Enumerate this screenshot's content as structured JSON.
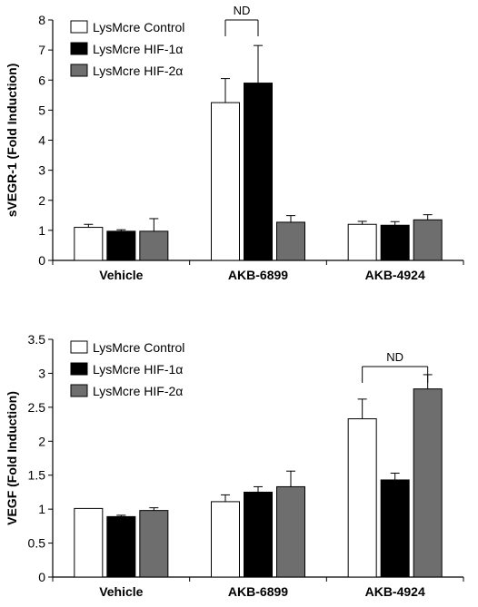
{
  "colors": {
    "control_fill": "#ffffff",
    "hif1a_fill": "#000000",
    "hif2a_fill": "#6e6e6e",
    "bar_stroke": "#000000",
    "axis": "#000000"
  },
  "chart_data": [
    {
      "type": "bar",
      "title": "",
      "xlabel": "",
      "ylabel": "sVEGR-1 (Fold Induction)",
      "ylim": [
        0,
        8
      ],
      "yticks": [
        "0",
        "1",
        "2",
        "3",
        "4",
        "5",
        "6",
        "7",
        "8"
      ],
      "grid": false,
      "legend_position": "top-left",
      "categories": [
        "Vehicle",
        "AKB-6899",
        "AKB-4924"
      ],
      "series": [
        {
          "name": "LysMcre Control",
          "color": "#ffffff",
          "values": [
            1.1,
            5.25,
            1.2
          ],
          "errors": [
            0.1,
            0.8,
            0.1
          ]
        },
        {
          "name": "LysMcre HIF-1α",
          "color": "#000000",
          "values": [
            0.97,
            5.9,
            1.17
          ],
          "errors": [
            0.05,
            1.25,
            0.12
          ]
        },
        {
          "name": "LysMcre HIF-2α",
          "color": "#6e6e6e",
          "values": [
            0.97,
            1.27,
            1.35
          ],
          "errors": [
            0.42,
            0.22,
            0.17
          ]
        }
      ],
      "annotations": [
        {
          "text": "ND",
          "category": "AKB-6899",
          "series_from": 0,
          "series_to": 1,
          "y": 8.0
        }
      ]
    },
    {
      "type": "bar",
      "title": "",
      "xlabel": "",
      "ylabel": "VEGF (Fold Induction)",
      "ylim": [
        0,
        3.5
      ],
      "yticks": [
        "0",
        "0.5",
        "1",
        "1.5",
        "2",
        "2.5",
        "3",
        "3.5"
      ],
      "grid": false,
      "legend_position": "top-left",
      "categories": [
        "Vehicle",
        "AKB-6899",
        "AKB-4924"
      ],
      "series": [
        {
          "name": "LysMcre Control",
          "color": "#ffffff",
          "values": [
            1.01,
            1.11,
            2.33
          ],
          "errors": [
            0.0,
            0.1,
            0.29
          ]
        },
        {
          "name": "LysMcre HIF-1α",
          "color": "#000000",
          "values": [
            0.89,
            1.25,
            1.43
          ],
          "errors": [
            0.02,
            0.08,
            0.1
          ]
        },
        {
          "name": "LysMcre HIF-2α",
          "color": "#6e6e6e",
          "values": [
            0.98,
            1.33,
            2.77
          ],
          "errors": [
            0.04,
            0.23,
            0.21
          ]
        }
      ],
      "annotations": [
        {
          "text": "ND",
          "category": "AKB-4924",
          "series_from": 0,
          "series_to": 2,
          "y": 3.1
        }
      ]
    }
  ]
}
